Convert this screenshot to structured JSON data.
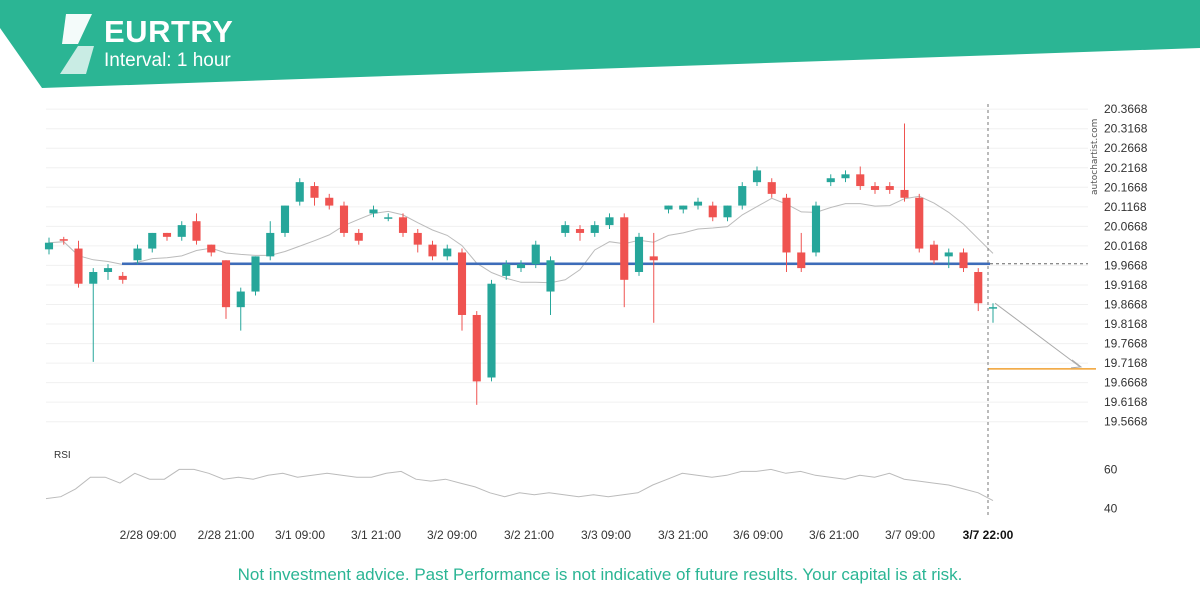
{
  "header": {
    "symbol": "EURTRY",
    "interval": "Interval: 1 hour",
    "brand_color": "#2bb594",
    "logo_icon": "autochartist-logo-icon"
  },
  "watermark": "autochartist.com",
  "footer": "Not investment advice. Past Performance is not indicative of future results. Your capital is at risk.",
  "chart_data": {
    "type": "candlestick",
    "title": "EURTRY",
    "subtitle": "Interval: 1 hour",
    "ylim": [
      19.52,
      20.38
    ],
    "y_ticks": [
      "20.3668",
      "20.3168",
      "20.2668",
      "20.2168",
      "20.1668",
      "20.1168",
      "20.0668",
      "20.0168",
      "19.9668",
      "19.9168",
      "19.8668",
      "19.8168",
      "19.7668",
      "19.7168",
      "19.6668",
      "19.6168",
      "19.5668"
    ],
    "x_ticks": [
      "2/28 09:00",
      "2/28 21:00",
      "3/1 09:00",
      "3/1 21:00",
      "3/2 09:00",
      "3/2 21:00",
      "3/3 09:00",
      "3/3 21:00",
      "3/6 09:00",
      "3/6 21:00",
      "3/7 09:00",
      "3/7 22:00"
    ],
    "highlight_tick": "3/7 22:00",
    "colors": {
      "up": "#26a69a",
      "down": "#ef5350",
      "moving_average": "#bbbbbb",
      "support": "#3d6cb9",
      "target": "#f0a030",
      "rsi": "#bbbbbb"
    },
    "support_level": 19.971,
    "target_level": 19.702,
    "grid": true,
    "candles_sampled": [
      {
        "o": 20.008,
        "h": 20.038,
        "l": 19.995,
        "c": 20.025
      },
      {
        "o": 20.034,
        "h": 20.04,
        "l": 20.02,
        "c": 20.03
      },
      {
        "o": 20.01,
        "h": 20.03,
        "l": 19.91,
        "c": 19.92
      },
      {
        "o": 19.92,
        "h": 19.96,
        "l": 19.72,
        "c": 19.95
      },
      {
        "o": 19.95,
        "h": 19.97,
        "l": 19.93,
        "c": 19.96
      },
      {
        "o": 19.94,
        "h": 19.95,
        "l": 19.92,
        "c": 19.93
      },
      {
        "o": 19.98,
        "h": 20.02,
        "l": 19.97,
        "c": 20.01
      },
      {
        "o": 20.01,
        "h": 20.05,
        "l": 20.0,
        "c": 20.05
      },
      {
        "o": 20.05,
        "h": 20.05,
        "l": 20.03,
        "c": 20.04
      },
      {
        "o": 20.04,
        "h": 20.08,
        "l": 20.03,
        "c": 20.07
      },
      {
        "o": 20.08,
        "h": 20.1,
        "l": 20.02,
        "c": 20.03
      },
      {
        "o": 20.02,
        "h": 20.02,
        "l": 19.99,
        "c": 20.0
      },
      {
        "o": 19.98,
        "h": 19.98,
        "l": 19.83,
        "c": 19.86
      },
      {
        "o": 19.86,
        "h": 19.91,
        "l": 19.8,
        "c": 19.9
      },
      {
        "o": 19.9,
        "h": 19.99,
        "l": 19.89,
        "c": 19.99
      },
      {
        "o": 19.99,
        "h": 20.08,
        "l": 19.98,
        "c": 20.05
      },
      {
        "o": 20.05,
        "h": 20.12,
        "l": 20.04,
        "c": 20.12
      },
      {
        "o": 20.13,
        "h": 20.19,
        "l": 20.12,
        "c": 20.18
      },
      {
        "o": 20.17,
        "h": 20.18,
        "l": 20.12,
        "c": 20.14
      },
      {
        "o": 20.14,
        "h": 20.15,
        "l": 20.11,
        "c": 20.12
      },
      {
        "o": 20.12,
        "h": 20.13,
        "l": 20.04,
        "c": 20.05
      },
      {
        "o": 20.05,
        "h": 20.06,
        "l": 20.02,
        "c": 20.03
      },
      {
        "o": 20.1,
        "h": 20.12,
        "l": 20.09,
        "c": 20.11
      },
      {
        "o": 20.09,
        "h": 20.1,
        "l": 20.08,
        "c": 20.09
      },
      {
        "o": 20.09,
        "h": 20.1,
        "l": 20.04,
        "c": 20.05
      },
      {
        "o": 20.05,
        "h": 20.06,
        "l": 20.0,
        "c": 20.02
      },
      {
        "o": 20.02,
        "h": 20.03,
        "l": 19.98,
        "c": 19.99
      },
      {
        "o": 19.99,
        "h": 20.02,
        "l": 19.98,
        "c": 20.01
      },
      {
        "o": 20.0,
        "h": 20.01,
        "l": 19.8,
        "c": 19.84
      },
      {
        "o": 19.84,
        "h": 19.85,
        "l": 19.61,
        "c": 19.67
      },
      {
        "o": 19.68,
        "h": 19.93,
        "l": 19.67,
        "c": 19.92
      },
      {
        "o": 19.94,
        "h": 19.98,
        "l": 19.93,
        "c": 19.97
      },
      {
        "o": 19.96,
        "h": 19.98,
        "l": 19.95,
        "c": 19.97
      },
      {
        "o": 19.97,
        "h": 20.03,
        "l": 19.96,
        "c": 20.02
      },
      {
        "o": 19.9,
        "h": 19.99,
        "l": 19.84,
        "c": 19.98
      },
      {
        "o": 20.05,
        "h": 20.08,
        "l": 20.04,
        "c": 20.07
      },
      {
        "o": 20.06,
        "h": 20.07,
        "l": 20.03,
        "c": 20.05
      },
      {
        "o": 20.05,
        "h": 20.08,
        "l": 20.04,
        "c": 20.07
      },
      {
        "o": 20.07,
        "h": 20.1,
        "l": 20.06,
        "c": 20.09
      },
      {
        "o": 20.09,
        "h": 20.1,
        "l": 19.86,
        "c": 19.93
      },
      {
        "o": 19.95,
        "h": 20.05,
        "l": 19.94,
        "c": 20.04
      },
      {
        "o": 19.99,
        "h": 20.05,
        "l": 19.82,
        "c": 19.98
      },
      {
        "o": 20.11,
        "h": 20.12,
        "l": 20.1,
        "c": 20.12
      },
      {
        "o": 20.11,
        "h": 20.12,
        "l": 20.1,
        "c": 20.12
      },
      {
        "o": 20.12,
        "h": 20.14,
        "l": 20.11,
        "c": 20.13
      },
      {
        "o": 20.12,
        "h": 20.13,
        "l": 20.08,
        "c": 20.09
      },
      {
        "o": 20.09,
        "h": 20.12,
        "l": 20.08,
        "c": 20.12
      },
      {
        "o": 20.12,
        "h": 20.18,
        "l": 20.11,
        "c": 20.17
      },
      {
        "o": 20.18,
        "h": 20.22,
        "l": 20.17,
        "c": 20.21
      },
      {
        "o": 20.18,
        "h": 20.19,
        "l": 20.14,
        "c": 20.15
      },
      {
        "o": 20.14,
        "h": 20.15,
        "l": 19.95,
        "c": 20.0
      },
      {
        "o": 20.0,
        "h": 20.05,
        "l": 19.95,
        "c": 19.96
      },
      {
        "o": 20.0,
        "h": 20.13,
        "l": 19.99,
        "c": 20.12
      },
      {
        "o": 20.18,
        "h": 20.2,
        "l": 20.17,
        "c": 20.19
      },
      {
        "o": 20.19,
        "h": 20.21,
        "l": 20.18,
        "c": 20.2
      },
      {
        "o": 20.2,
        "h": 20.22,
        "l": 20.16,
        "c": 20.17
      },
      {
        "o": 20.17,
        "h": 20.18,
        "l": 20.15,
        "c": 20.16
      },
      {
        "o": 20.17,
        "h": 20.18,
        "l": 20.15,
        "c": 20.16
      },
      {
        "o": 20.16,
        "h": 20.33,
        "l": 20.13,
        "c": 20.14
      },
      {
        "o": 20.14,
        "h": 20.15,
        "l": 20.0,
        "c": 20.01
      },
      {
        "o": 20.02,
        "h": 20.03,
        "l": 19.97,
        "c": 19.98
      },
      {
        "o": 19.99,
        "h": 20.01,
        "l": 19.96,
        "c": 20.0
      },
      {
        "o": 20.0,
        "h": 20.01,
        "l": 19.95,
        "c": 19.96
      },
      {
        "o": 19.95,
        "h": 19.96,
        "l": 19.85,
        "c": 19.87
      },
      {
        "o": 19.86,
        "h": 19.87,
        "l": 19.82,
        "c": 19.86
      }
    ],
    "rsi": {
      "label": "RSI",
      "ylim": [
        34,
        70
      ],
      "ticks": [
        60,
        40
      ],
      "values": [
        45,
        46,
        50,
        56,
        56,
        53,
        58,
        55,
        55,
        60,
        60,
        58,
        55,
        56,
        55,
        57,
        58,
        56,
        57,
        58,
        57,
        56,
        56,
        58,
        59,
        55,
        54,
        55,
        53,
        51,
        48,
        46,
        48,
        47,
        48,
        47,
        46,
        47,
        46,
        47,
        48,
        52,
        55,
        58,
        57,
        56,
        57,
        59,
        59,
        60,
        58,
        59,
        57,
        56,
        55,
        57,
        56,
        58,
        55,
        54,
        53,
        52,
        50,
        48,
        44
      ]
    }
  }
}
